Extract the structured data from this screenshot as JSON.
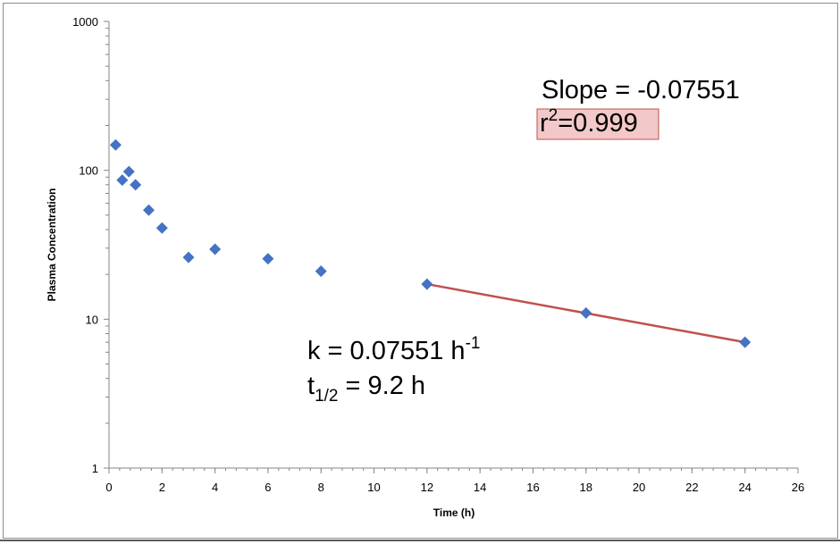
{
  "chart_data": {
    "type": "scatter",
    "xlabel": "Time (h)",
    "ylabel": "Plasma Concentration",
    "xlim": [
      0,
      26
    ],
    "ylim": [
      1,
      1000
    ],
    "y_scale": "log",
    "x_ticks": [
      "0",
      "2",
      "4",
      "6",
      "8",
      "10",
      "12",
      "14",
      "16",
      "18",
      "20",
      "22",
      "24",
      "26"
    ],
    "y_ticks": [
      "1",
      "10",
      "100",
      "1000"
    ],
    "grid": false,
    "series": [
      {
        "type": "scatter",
        "color": "#4472c4",
        "marker": "diamond",
        "x": [
          0.25,
          0.5,
          0.75,
          1,
          1.5,
          2,
          3,
          4,
          6,
          8,
          12,
          18,
          24
        ],
        "y": [
          148,
          86,
          98,
          80,
          54,
          41,
          26,
          29.5,
          25.5,
          21,
          17.2,
          11,
          7
        ]
      },
      {
        "type": "line",
        "color": "#c0504d",
        "x": [
          12,
          24
        ],
        "y": [
          17.2,
          7
        ]
      }
    ],
    "annotations": {
      "slope": "Slope = -0.07551",
      "r2_base": "r",
      "r2_sup": "2",
      "r2_value": "=0.999",
      "k_text": "k = 0.07551 h",
      "k_sup": "-1",
      "t_base": "t",
      "t_sub": "1/2",
      "t_value": " = 9.2 h"
    },
    "r2_box_color": "#f2c8c8",
    "r2_box_border": "#c0504d"
  }
}
